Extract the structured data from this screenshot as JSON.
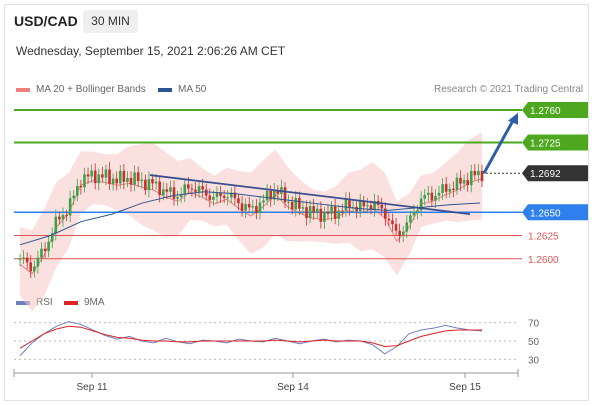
{
  "header": {
    "symbol": "USD/CAD",
    "timeframe": "30 MIN",
    "datetime": "Wednesday, September 15, 2021 2:06:26 AM CET"
  },
  "legend": {
    "ma20": {
      "label": "MA 20 + Bollinger Bands",
      "color": "#f08080"
    },
    "ma50": {
      "label": "MA 50",
      "color": "#2c5591"
    },
    "rsi": {
      "label": "RSI",
      "color": "#7080c0"
    },
    "ma9": {
      "label": "9MA",
      "color": "#dd2222"
    }
  },
  "credit": "Research © 2021 Trading Central",
  "colors": {
    "bull": "#3aa34a",
    "bear": "#c9302c",
    "resistance": "#4ea81f",
    "pivot": "#2f80ed",
    "support": "#e05252",
    "current": "#333333",
    "trendline": "#3a4f8f",
    "band": "#f7c6c6"
  },
  "chart_data": {
    "type": "candlestick",
    "x_ticks": [
      "Sep 11",
      "Sep 14",
      "Sep 15"
    ],
    "price_range": [
      1.2575,
      1.2775
    ],
    "levels": [
      {
        "name": "resistance_2",
        "value": "1.2760",
        "kind": "resistance"
      },
      {
        "name": "resistance_1",
        "value": "1.2725",
        "kind": "resistance"
      },
      {
        "name": "current",
        "value": "1.2692",
        "kind": "current"
      },
      {
        "name": "pivot",
        "value": "1.2650",
        "kind": "pivot"
      },
      {
        "name": "support_1",
        "value": "1.2625",
        "kind": "support"
      },
      {
        "name": "support_2",
        "value": "1.2600",
        "kind": "support"
      }
    ],
    "close_path": [
      1.26,
      1.259,
      1.261,
      1.264,
      1.2655,
      1.2685,
      1.269,
      1.2688,
      1.2685,
      1.2687,
      1.2683,
      1.268,
      1.2672,
      1.2668,
      1.2678,
      1.2672,
      1.2665,
      1.267,
      1.266,
      1.2652,
      1.2662,
      1.2675,
      1.2662,
      1.2655,
      1.265,
      1.2648,
      1.265,
      1.2658,
      1.2655,
      1.266,
      1.265,
      1.2625,
      1.264,
      1.2665,
      1.2668,
      1.2675,
      1.268,
      1.2688,
      1.2692
    ],
    "ma50_path": [
      1.2615,
      1.2625,
      1.264,
      1.2648,
      1.266,
      1.2668,
      1.2672,
      1.267,
      1.2666,
      1.2662,
      1.2658,
      1.2654,
      1.2652,
      1.2655,
      1.2658,
      1.266
    ],
    "trendline": {
      "start": 1.269,
      "end": 1.2648
    },
    "rsi_axis": [
      "70",
      "50",
      "30"
    ],
    "rsi_values": [
      34,
      48,
      58,
      66,
      71,
      68,
      62,
      56,
      52,
      55,
      50,
      48,
      53,
      49,
      47,
      51,
      50,
      48,
      52,
      50,
      49,
      53,
      50,
      47,
      50,
      52,
      49,
      51,
      50,
      46,
      36,
      44,
      58,
      62,
      64,
      67,
      64,
      62,
      61
    ],
    "ma9_values": [
      42,
      50,
      58,
      63,
      66,
      65,
      61,
      57,
      54,
      53,
      51,
      50,
      50,
      49,
      49,
      50,
      50,
      50,
      50,
      50,
      50,
      51,
      50,
      49,
      50,
      51,
      50,
      50,
      50,
      48,
      44,
      45,
      50,
      55,
      58,
      61,
      62,
      62,
      62
    ]
  }
}
